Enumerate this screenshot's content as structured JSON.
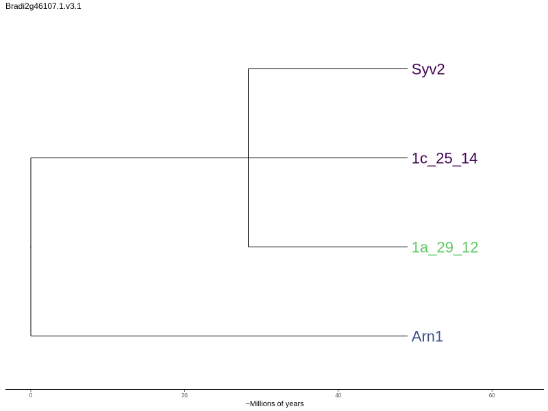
{
  "title": "Bradi2g46107.1.v3.1",
  "chart_data": {
    "type": "tree",
    "xlabel": "~Millions of years",
    "xlim": [
      -1.6,
      67
    ],
    "xticks": [
      0,
      20,
      40,
      60
    ],
    "tip_x": 49,
    "root_x": 0,
    "clades": [
      {
        "node_x": 28.3,
        "children": [
          "Syv2",
          "1a_29_12"
        ]
      }
    ],
    "leaves": [
      {
        "name": "Syv2",
        "color": "#440154",
        "parent_x": 28.3
      },
      {
        "name": "1c_25_14",
        "color": "#440154",
        "parent_x": 0
      },
      {
        "name": "1a_29_12",
        "color": "#5ec962",
        "parent_x": 28.3
      },
      {
        "name": "Arn1",
        "color": "#3b528b",
        "parent_x": 0
      }
    ]
  }
}
